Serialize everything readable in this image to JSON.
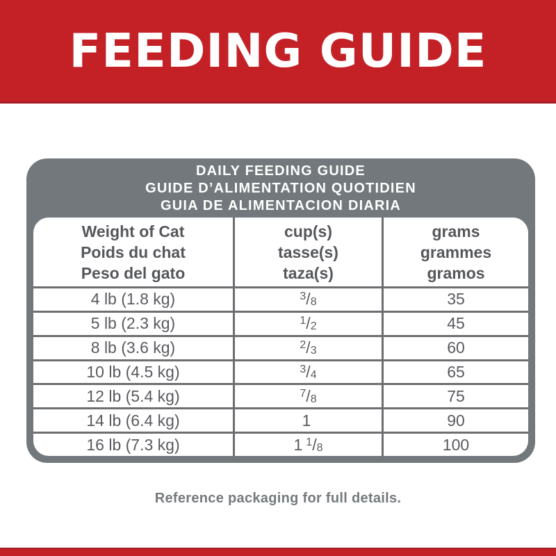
{
  "banner": {
    "title": "FEEDING GUIDE"
  },
  "table": {
    "title_lines": [
      "DAILY FEEDING GUIDE",
      "GUIDE D’ALIMENTATION QUOTIDIEN",
      "GUIA DE ALIMENTACION DIARIA"
    ],
    "columns": [
      {
        "lines": [
          "Weight of Cat",
          "Poids du chat",
          "Peso del gato"
        ]
      },
      {
        "lines": [
          "cup(s)",
          "tasse(s)",
          "taza(s)"
        ]
      },
      {
        "lines": [
          "grams",
          "grammes",
          "gramos"
        ]
      }
    ],
    "rows": [
      {
        "weight": "4 lb (1.8 kg)",
        "cup": {
          "whole": "",
          "num": "3",
          "slash": "/",
          "den": "8"
        },
        "grams": "35"
      },
      {
        "weight": "5 lb (2.3 kg)",
        "cup": {
          "whole": "",
          "num": "1",
          "slash": "/",
          "den": "2"
        },
        "grams": "45"
      },
      {
        "weight": "8 lb (3.6 kg)",
        "cup": {
          "whole": "",
          "num": "2",
          "slash": "/",
          "den": "3"
        },
        "grams": "60"
      },
      {
        "weight": "10 lb (4.5 kg)",
        "cup": {
          "whole": "",
          "num": "3",
          "slash": "/",
          "den": "4"
        },
        "grams": "65"
      },
      {
        "weight": "12 lb (5.4 kg)",
        "cup": {
          "whole": "",
          "num": "7",
          "slash": "/",
          "den": "8"
        },
        "grams": "75"
      },
      {
        "weight": "14 lb (6.4 kg)",
        "cup": {
          "whole": "1",
          "num": "",
          "slash": "",
          "den": ""
        },
        "grams": "90"
      },
      {
        "weight": "16 lb (7.3 kg)",
        "cup": {
          "whole": "1",
          "num": "1",
          "slash": "/",
          "den": "8"
        },
        "grams": "100"
      }
    ]
  },
  "footer": {
    "note": "Reference packaging for full details."
  },
  "colors": {
    "accent_red": "#C42127",
    "accent_red_dark": "#A61E24",
    "band_gray": "#72787B",
    "line_gray": "#6D6E71",
    "text_gray": "#595A5E",
    "note_gray": "#747A7D"
  }
}
